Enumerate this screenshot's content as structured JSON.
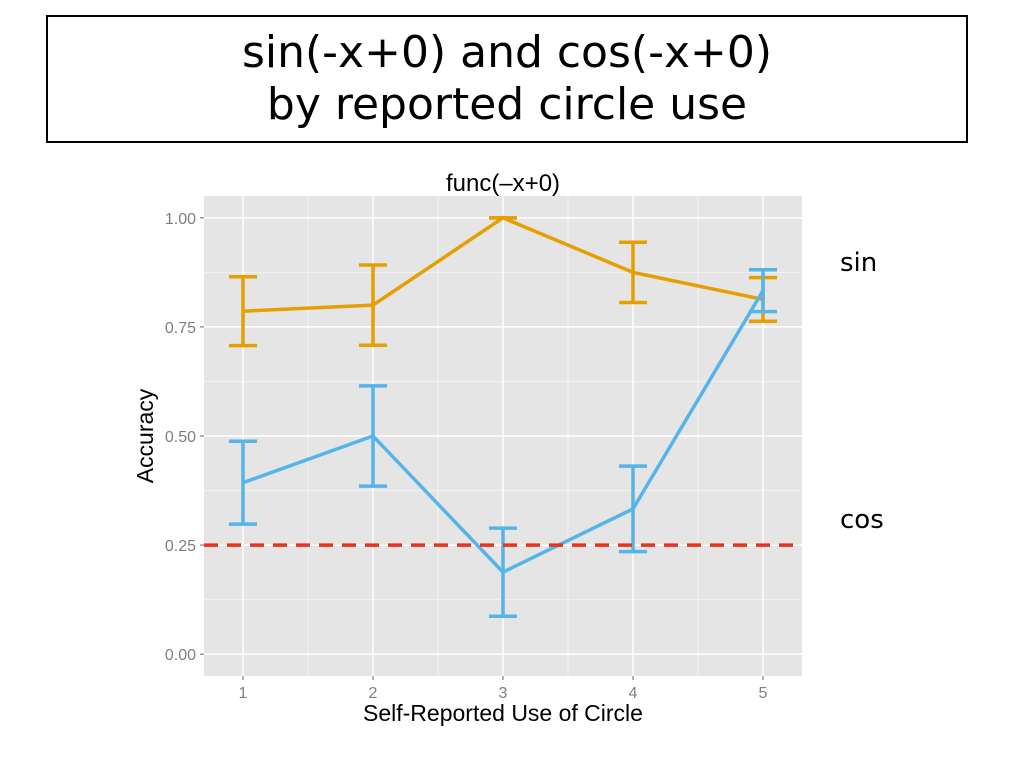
{
  "slide": {
    "title_line1": "sin(-x+0) and cos(-x+0)",
    "title_line2": "by reported circle use",
    "label_sin": "sin",
    "label_cos": "cos"
  },
  "chart_data": {
    "type": "line",
    "title": "func(–x+0)",
    "xlabel": "Self-Reported Use of Circle",
    "ylabel": "Accuracy",
    "x": [
      1,
      2,
      3,
      4,
      5
    ],
    "x_ticks": [
      "1",
      "2",
      "3",
      "4",
      "5"
    ],
    "xlim": [
      0.7,
      5.3
    ],
    "ylim": [
      -0.05,
      1.05
    ],
    "y_ticks": [
      0,
      0.25,
      0.5,
      0.75,
      1.0
    ],
    "y_tick_labels": [
      "0.00",
      "0.25",
      "0.50",
      "0.75",
      "1.00"
    ],
    "grid": true,
    "panel_color": "#e5e5e5",
    "reference_line": {
      "y": 0.25,
      "style": "dashed",
      "color": "#e8341c"
    },
    "series": [
      {
        "name": "sin",
        "color": "#e69f00",
        "values": [
          0.786,
          0.8,
          1.0,
          0.875,
          0.813
        ],
        "error_low": [
          0.707,
          0.708,
          1.0,
          0.806,
          0.763
        ],
        "error_high": [
          0.865,
          0.892,
          1.0,
          0.944,
          0.863
        ]
      },
      {
        "name": "cos",
        "color": "#56b4e9",
        "values": [
          0.393,
          0.5,
          0.188,
          0.333,
          0.833
        ],
        "error_low": [
          0.298,
          0.385,
          0.087,
          0.235,
          0.785
        ],
        "error_high": [
          0.488,
          0.615,
          0.289,
          0.431,
          0.881
        ]
      }
    ]
  }
}
